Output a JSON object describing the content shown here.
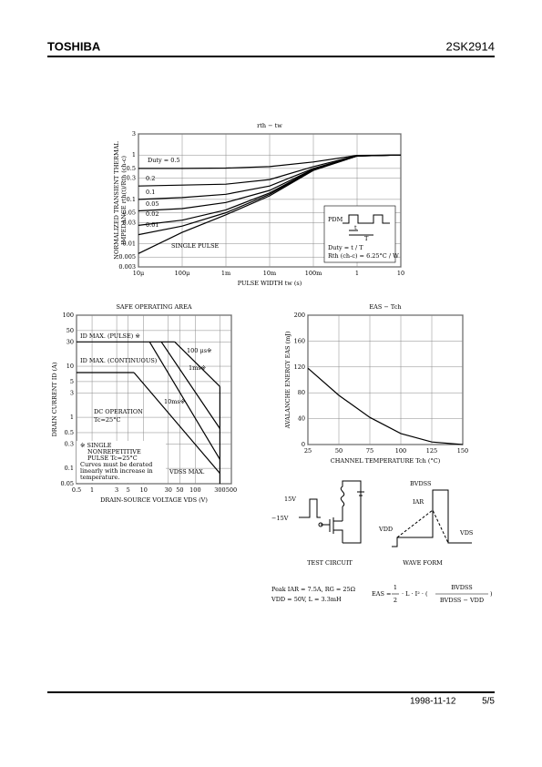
{
  "header": {
    "brand": "TOSHIBA",
    "part": "2SK2914"
  },
  "footer": {
    "date": "1998-11-12",
    "page": "5/5"
  },
  "chart_data": [
    {
      "type": "line",
      "title": "rth − tw",
      "xlabel": "PULSE WIDTH tw (s)",
      "ylabel": [
        "NORMALIZED TRANSIENT THERMAL",
        "IMPEDANCE rth(t)/Rth (ch-c)"
      ],
      "xlog": true,
      "ylog": true,
      "grid": true,
      "color": "#000000",
      "xlim": [
        1e-05,
        10
      ],
      "ylim": [
        0.003,
        3
      ],
      "xticks": [
        {
          "value": 1e-05,
          "label": "10μ"
        },
        {
          "value": 0.0001,
          "label": "100μ"
        },
        {
          "value": 0.001,
          "label": "1m"
        },
        {
          "value": 0.01,
          "label": "10m"
        },
        {
          "value": 0.1,
          "label": "100m"
        },
        1,
        10
      ],
      "yticks": [
        3,
        1,
        0.5,
        0.3,
        0.1,
        0.05,
        0.03,
        0.01,
        0.005,
        0.003
      ],
      "x": [
        1e-05,
        0.0001,
        0.001,
        0.01,
        0.1,
        1,
        10
      ],
      "series": [
        {
          "name": "Duty = 0.5",
          "values": [
            0.5,
            0.5,
            0.51,
            0.55,
            0.7,
            0.98,
            1
          ]
        },
        {
          "name": "0.2",
          "values": [
            0.2,
            0.21,
            0.22,
            0.28,
            0.55,
            0.97,
            1
          ]
        },
        {
          "name": "0.1",
          "values": [
            0.1,
            0.11,
            0.13,
            0.2,
            0.5,
            0.96,
            1
          ]
        },
        {
          "name": "0.05",
          "values": [
            0.055,
            0.062,
            0.085,
            0.16,
            0.48,
            0.96,
            1
          ]
        },
        {
          "name": "0.02",
          "values": [
            0.026,
            0.034,
            0.058,
            0.14,
            0.47,
            0.95,
            1
          ]
        },
        {
          "name": "0.01",
          "values": [
            0.016,
            0.025,
            0.05,
            0.13,
            0.46,
            0.95,
            1
          ]
        },
        {
          "name": "SINGLE PULSE",
          "values": [
            0.006,
            0.018,
            0.045,
            0.12,
            0.45,
            0.95,
            1
          ]
        }
      ],
      "annotations": [
        "PDM",
        "t",
        "T",
        "Duty = t / T",
        "Rth (ch-c) = 6.25°C / W"
      ]
    },
    {
      "type": "line",
      "title": "SAFE OPERATING AREA",
      "xlabel": "DRAIN-SOURCE VOLTAGE VDS (V)",
      "ylabel": [
        "DRAIN CURRENT ID (A)"
      ],
      "xlog": true,
      "ylog": true,
      "grid": true,
      "color": "#000000",
      "xlim": [
        0.5,
        500
      ],
      "ylim": [
        0.05,
        100
      ],
      "xticks": [
        0.5,
        1,
        3,
        5,
        10,
        30,
        50,
        100,
        300,
        500
      ],
      "yticks": [
        100,
        50,
        30,
        10,
        5,
        3,
        1,
        0.5,
        0.3,
        0.1,
        0.05
      ],
      "series": [
        {
          "name": "ID MAX. (PULSE) ※",
          "x": [
            0.5,
            40
          ],
          "values": [
            30,
            30
          ]
        },
        {
          "name": "100 μs※",
          "x": [
            40,
            300
          ],
          "values": [
            30,
            4
          ]
        },
        {
          "name": "1ms※",
          "x": [
            22,
            300
          ],
          "values": [
            30,
            0.6
          ]
        },
        {
          "name": "10ms※",
          "x": [
            13,
            300
          ],
          "values": [
            30,
            0.15
          ]
        },
        {
          "name": "ID MAX. (CONTINUOUS)",
          "x": [
            0.5,
            6.5
          ],
          "values": [
            7.5,
            7.5
          ]
        },
        {
          "name": "DC OPERATION",
          "x": [
            6.5,
            300
          ],
          "values": [
            7.5,
            0.08
          ]
        },
        {
          "name": "VDSS MAX.",
          "x": [
            300,
            300
          ],
          "values": [
            0.05,
            4
          ]
        }
      ],
      "annotations": [
        "Tc=25°C",
        "※  SINGLE",
        "NONREPETITIVE",
        "PULSE Tc=25°C",
        "Curves must be derated",
        "linearly with increase in",
        "temperature."
      ]
    },
    {
      "type": "line",
      "title": "EAS − Tch",
      "xlabel": "CHANNEL TEMPERATURE Tch (°C)",
      "ylabel": [
        "AVALANCHE ENERGY EAS (mJ)"
      ],
      "xlog": false,
      "ylog": false,
      "grid": true,
      "color": "#000000",
      "xlim": [
        25,
        150
      ],
      "ylim": [
        0,
        200
      ],
      "xticks": [
        25,
        50,
        75,
        100,
        125,
        150
      ],
      "yticks": [
        0,
        40,
        80,
        120,
        160,
        200
      ],
      "x": [
        25,
        50,
        75,
        100,
        125,
        150
      ],
      "values": [
        118,
        76,
        42,
        17,
        4,
        0
      ]
    }
  ],
  "test_circuit": {
    "v_pos": "15V",
    "v_neg": "−15V",
    "caption": "TEST CIRCUIT"
  },
  "wave_form": {
    "bvdss": "BVDSS",
    "iar": "IAR",
    "vdd": "VDD",
    "vds": "VDS",
    "caption": "WAVE FORM"
  },
  "conditions": [
    "Peak IAR = 7.5A, RG = 25Ω",
    "VDD = 50V, L = 3.3mH"
  ],
  "formula": {
    "lhs": "EAS =",
    "num": "1",
    "den": "2",
    "mid": "· L · I² · (",
    "frac_num": "BVDSS",
    "frac_den": "BVDSS − VDD",
    "close": ")"
  }
}
